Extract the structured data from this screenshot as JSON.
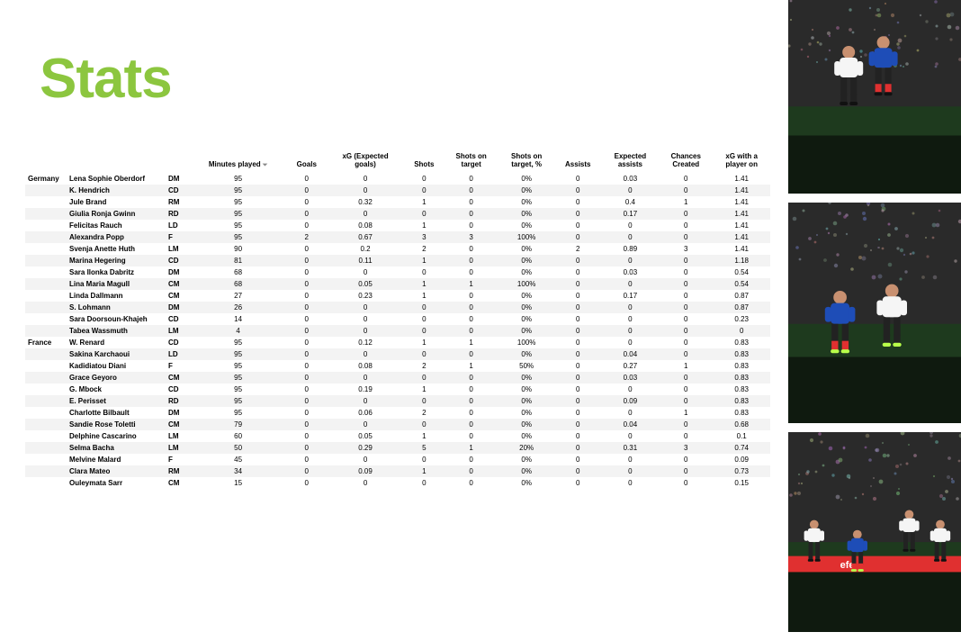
{
  "title": "Stats",
  "columns": [
    "Minutes played",
    "Goals",
    "xG (Expected goals)",
    "Shots",
    "Shots on target",
    "Shots on target, %",
    "Assists",
    "Expected assists",
    "Chances Created",
    "xG with a player on"
  ],
  "teams": [
    {
      "name": "Germany",
      "rows": [
        {
          "player": "Lena Sophie Oberdorf",
          "pos": "DM",
          "vals": [
            "95",
            "0",
            "0",
            "0",
            "0",
            "0%",
            "0",
            "0.03",
            "0",
            "1.41"
          ]
        },
        {
          "player": "K. Hendrich",
          "pos": "CD",
          "vals": [
            "95",
            "0",
            "0",
            "0",
            "0",
            "0%",
            "0",
            "0",
            "0",
            "1.41"
          ]
        },
        {
          "player": "Jule Brand",
          "pos": "RM",
          "vals": [
            "95",
            "0",
            "0.32",
            "1",
            "0",
            "0%",
            "0",
            "0.4",
            "1",
            "1.41"
          ]
        },
        {
          "player": "Giulia Ronja Gwinn",
          "pos": "RD",
          "vals": [
            "95",
            "0",
            "0",
            "0",
            "0",
            "0%",
            "0",
            "0.17",
            "0",
            "1.41"
          ]
        },
        {
          "player": "Felicitas Rauch",
          "pos": "LD",
          "vals": [
            "95",
            "0",
            "0.08",
            "1",
            "0",
            "0%",
            "0",
            "0",
            "0",
            "1.41"
          ]
        },
        {
          "player": "Alexandra Popp",
          "pos": "F",
          "vals": [
            "95",
            "2",
            "0.67",
            "3",
            "3",
            "100%",
            "0",
            "0",
            "0",
            "1.41"
          ]
        },
        {
          "player": "Svenja Anette Huth",
          "pos": "LM",
          "vals": [
            "90",
            "0",
            "0.2",
            "2",
            "0",
            "0%",
            "2",
            "0.89",
            "3",
            "1.41"
          ]
        },
        {
          "player": "Marina Hegering",
          "pos": "CD",
          "vals": [
            "81",
            "0",
            "0.11",
            "1",
            "0",
            "0%",
            "0",
            "0",
            "0",
            "1.18"
          ]
        },
        {
          "player": "Sara Ilonka Dabritz",
          "pos": "DM",
          "vals": [
            "68",
            "0",
            "0",
            "0",
            "0",
            "0%",
            "0",
            "0.03",
            "0",
            "0.54"
          ]
        },
        {
          "player": "Lina Maria Magull",
          "pos": "CM",
          "vals": [
            "68",
            "0",
            "0.05",
            "1",
            "1",
            "100%",
            "0",
            "0",
            "0",
            "0.54"
          ]
        },
        {
          "player": "Linda Dallmann",
          "pos": "CM",
          "vals": [
            "27",
            "0",
            "0.23",
            "1",
            "0",
            "0%",
            "0",
            "0.17",
            "0",
            "0.87"
          ]
        },
        {
          "player": "S. Lohmann",
          "pos": "DM",
          "vals": [
            "26",
            "0",
            "0",
            "0",
            "0",
            "0%",
            "0",
            "0",
            "0",
            "0.87"
          ]
        },
        {
          "player": "Sara Doorsoun-Khajeh",
          "pos": "CD",
          "vals": [
            "14",
            "0",
            "0",
            "0",
            "0",
            "0%",
            "0",
            "0",
            "0",
            "0.23"
          ]
        },
        {
          "player": "Tabea Wassmuth",
          "pos": "LM",
          "vals": [
            "4",
            "0",
            "0",
            "0",
            "0",
            "0%",
            "0",
            "0",
            "0",
            "0"
          ]
        }
      ]
    },
    {
      "name": "France",
      "rows": [
        {
          "player": "W. Renard",
          "pos": "CD",
          "vals": [
            "95",
            "0",
            "0.12",
            "1",
            "1",
            "100%",
            "0",
            "0",
            "0",
            "0.83"
          ]
        },
        {
          "player": "Sakina Karchaoui",
          "pos": "LD",
          "vals": [
            "95",
            "0",
            "0",
            "0",
            "0",
            "0%",
            "0",
            "0.04",
            "0",
            "0.83"
          ]
        },
        {
          "player": "Kadidiatou Diani",
          "pos": "F",
          "vals": [
            "95",
            "0",
            "0.08",
            "2",
            "1",
            "50%",
            "0",
            "0.27",
            "1",
            "0.83"
          ]
        },
        {
          "player": "Grace Geyoro",
          "pos": "CM",
          "vals": [
            "95",
            "0",
            "0",
            "0",
            "0",
            "0%",
            "0",
            "0.03",
            "0",
            "0.83"
          ]
        },
        {
          "player": "G. Mbock",
          "pos": "CD",
          "vals": [
            "95",
            "0",
            "0.19",
            "1",
            "0",
            "0%",
            "0",
            "0",
            "0",
            "0.83"
          ]
        },
        {
          "player": "E. Perisset",
          "pos": "RD",
          "vals": [
            "95",
            "0",
            "0",
            "0",
            "0",
            "0%",
            "0",
            "0.09",
            "0",
            "0.83"
          ]
        },
        {
          "player": "Charlotte Bilbault",
          "pos": "DM",
          "vals": [
            "95",
            "0",
            "0.06",
            "2",
            "0",
            "0%",
            "0",
            "0",
            "1",
            "0.83"
          ]
        },
        {
          "player": "Sandie Rose Toletti",
          "pos": "CM",
          "vals": [
            "79",
            "0",
            "0",
            "0",
            "0",
            "0%",
            "0",
            "0.04",
            "0",
            "0.68"
          ]
        },
        {
          "player": "Delphine Cascarino",
          "pos": "LM",
          "vals": [
            "60",
            "0",
            "0.05",
            "1",
            "0",
            "0%",
            "0",
            "0",
            "0",
            "0.1"
          ]
        },
        {
          "player": "Selma Bacha",
          "pos": "LM",
          "vals": [
            "50",
            "0",
            "0.29",
            "5",
            "1",
            "20%",
            "0",
            "0.31",
            "3",
            "0.74"
          ]
        },
        {
          "player": "Melvine Malard",
          "pos": "F",
          "vals": [
            "45",
            "0",
            "0",
            "0",
            "0",
            "0%",
            "0",
            "0",
            "0",
            "0.09"
          ]
        },
        {
          "player": "Clara Mateo",
          "pos": "RM",
          "vals": [
            "34",
            "0",
            "0.09",
            "1",
            "0",
            "0%",
            "0",
            "0",
            "0",
            "0.73"
          ]
        },
        {
          "player": "Ouleymata Sarr",
          "pos": "CM",
          "vals": [
            "15",
            "0",
            "0",
            "0",
            "0",
            "0%",
            "0",
            "0",
            "0",
            "0.15"
          ]
        }
      ]
    }
  ],
  "photo_heights": [
    215,
    245,
    222
  ],
  "colors": {
    "title": "#8cc63f",
    "alt_row": "#f3f3f3",
    "france_blue": "#1e4db7",
    "germany_white": "#f5f5f5",
    "red": "#e03030",
    "pitch_dark": "#0f1a0f",
    "pitch_mid": "#1e3a1e",
    "crowd": "#2a2a2a",
    "lime_boot": "#b8ff4a"
  }
}
